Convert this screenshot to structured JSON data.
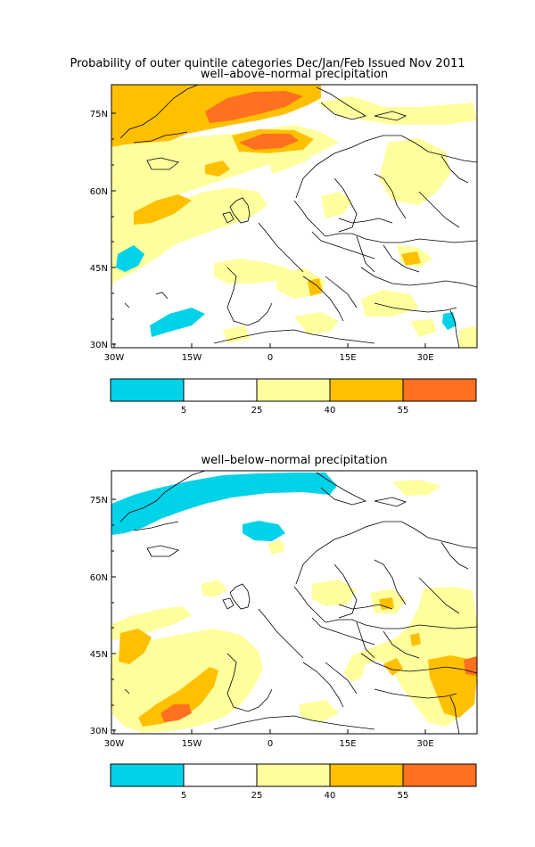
{
  "main_title": "Probability of outer quintile categories Dec/Jan/Feb Issued Nov 2011",
  "panels": [
    {
      "subtitle": "well–above–normal precipitation",
      "lat_labels": [
        "75N",
        "60N",
        "45N",
        "30N"
      ],
      "lon_labels": [
        "30W",
        "15W",
        "0",
        "15E",
        "30E"
      ],
      "colorbar_ticks": [
        "5",
        "25",
        "40",
        "55"
      ]
    },
    {
      "subtitle": "well–below–normal precipitation",
      "lat_labels": [
        "75N",
        "60N",
        "45N",
        "30N"
      ],
      "lon_labels": [
        "30W",
        "15W",
        "0",
        "15E",
        "30E"
      ],
      "colorbar_ticks": [
        "5",
        "25",
        "40",
        "55"
      ]
    }
  ],
  "legend_colors": [
    "#00d2e8",
    "#ffffff",
    "#ffff9e",
    "#ffc000",
    "#ff7020"
  ],
  "map_region": {
    "lon_range": [
      -30,
      40
    ],
    "lat_range": [
      29,
      80
    ]
  }
}
